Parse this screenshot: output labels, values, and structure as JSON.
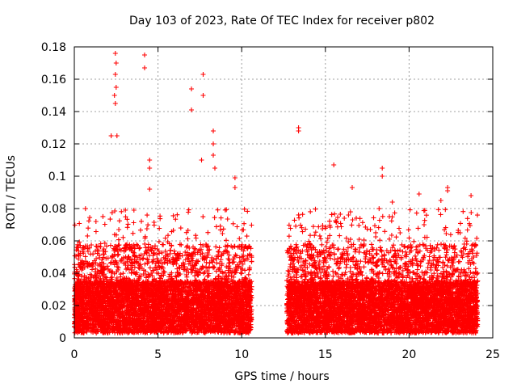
{
  "chart_data": {
    "type": "scatter",
    "title": "Day 103 of 2023, Rate Of TEC Index for receiver p802",
    "xlabel": "GPS time / hours",
    "ylabel": "ROTI / TECUs",
    "xlim": [
      0,
      25
    ],
    "ylim": [
      0,
      0.18
    ],
    "xticks": [
      0,
      5,
      10,
      15,
      20,
      25
    ],
    "xtick_labels": [
      "0",
      "5",
      "10",
      "15",
      "20",
      "25"
    ],
    "yticks": [
      0,
      0.02,
      0.04,
      0.06,
      0.08,
      0.1,
      0.12,
      0.14,
      0.16,
      0.18
    ],
    "ytick_labels": [
      "0",
      "0.02",
      "0.04",
      "0.06",
      "0.08",
      "0.1",
      "0.12",
      "0.14",
      "0.16",
      "0.18"
    ],
    "grid": true,
    "marker": "+",
    "marker_color": "#ff0000",
    "data_gap_hours": [
      10.6,
      12.7
    ],
    "series": [
      {
        "name": "ROTI",
        "segments": [
          {
            "x_range": [
              0.0,
              10.6
            ],
            "typical_max": 0.06
          },
          {
            "x_range": [
              12.7,
              24.1
            ],
            "typical_max": 0.06
          }
        ],
        "notable_points": [
          {
            "x": 2.45,
            "y": 0.176
          },
          {
            "x": 2.5,
            "y": 0.17
          },
          {
            "x": 2.45,
            "y": 0.163
          },
          {
            "x": 2.5,
            "y": 0.155
          },
          {
            "x": 2.4,
            "y": 0.15
          },
          {
            "x": 2.45,
            "y": 0.145
          },
          {
            "x": 2.2,
            "y": 0.125
          },
          {
            "x": 2.55,
            "y": 0.125
          },
          {
            "x": 4.2,
            "y": 0.175
          },
          {
            "x": 4.2,
            "y": 0.167
          },
          {
            "x": 4.5,
            "y": 0.11
          },
          {
            "x": 4.5,
            "y": 0.105
          },
          {
            "x": 4.5,
            "y": 0.092
          },
          {
            "x": 7.0,
            "y": 0.154
          },
          {
            "x": 7.0,
            "y": 0.141
          },
          {
            "x": 7.7,
            "y": 0.163
          },
          {
            "x": 7.7,
            "y": 0.15
          },
          {
            "x": 8.3,
            "y": 0.128
          },
          {
            "x": 8.3,
            "y": 0.12
          },
          {
            "x": 8.3,
            "y": 0.113
          },
          {
            "x": 8.4,
            "y": 0.105
          },
          {
            "x": 7.6,
            "y": 0.11
          },
          {
            "x": 9.6,
            "y": 0.099
          },
          {
            "x": 9.6,
            "y": 0.093
          },
          {
            "x": 13.4,
            "y": 0.13
          },
          {
            "x": 13.4,
            "y": 0.128
          },
          {
            "x": 15.5,
            "y": 0.107
          },
          {
            "x": 18.4,
            "y": 0.105
          },
          {
            "x": 18.4,
            "y": 0.1
          },
          {
            "x": 16.6,
            "y": 0.093
          },
          {
            "x": 22.3,
            "y": 0.093
          },
          {
            "x": 22.3,
            "y": 0.091
          },
          {
            "x": 21.9,
            "y": 0.085
          },
          {
            "x": 23.7,
            "y": 0.088
          },
          {
            "x": 19.0,
            "y": 0.084
          },
          {
            "x": 20.6,
            "y": 0.089
          }
        ]
      }
    ]
  }
}
